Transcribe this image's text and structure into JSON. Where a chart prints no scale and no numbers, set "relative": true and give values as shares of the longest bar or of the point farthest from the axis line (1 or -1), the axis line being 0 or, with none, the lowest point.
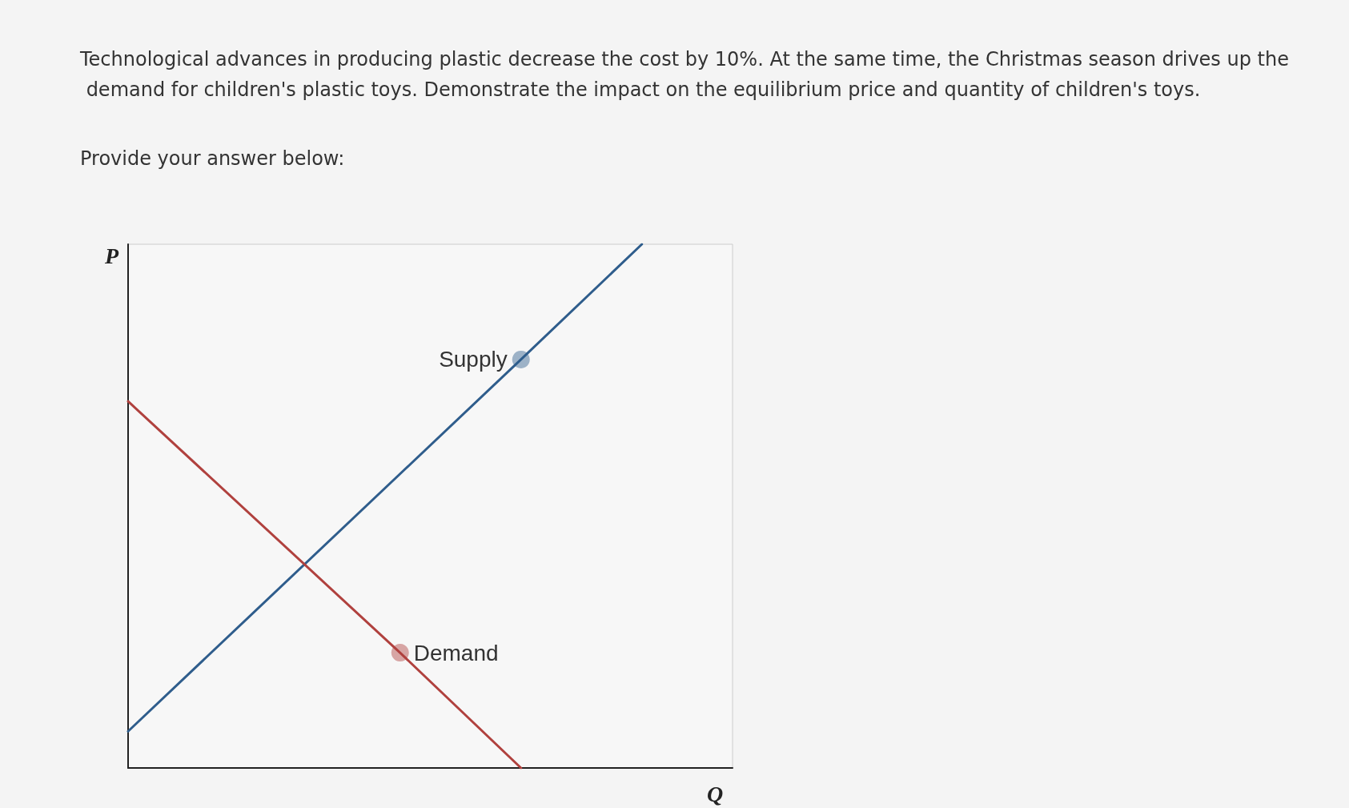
{
  "chart_data": {
    "type": "line",
    "title": "Technological advances in producing plastic decrease the cost by 10%. At the same time, the Christmas season drives up the demand for children's plastic toys. Demonstrate the impact on the equilibrium price and quantity of children's toys.",
    "subtitle": "Provide your answer below:",
    "xlabel": "Q",
    "ylabel": "P",
    "relative": true,
    "grid": false,
    "categories": [
      null,
      null,
      null,
      null,
      null,
      null,
      null,
      null,
      null,
      null,
      null,
      null,
      null,
      null,
      null,
      null,
      null,
      null,
      null,
      null,
      null
    ],
    "series": [
      {
        "name": "Supply",
        "color": "#2f5d8c",
        "values": [
          0.07,
          null,
          null,
          null,
          null,
          null,
          null,
          null,
          null,
          null,
          null,
          null,
          null,
          0.78,
          null,
          null,
          null,
          1,
          null,
          null,
          null
        ]
      },
      {
        "name": "Demand",
        "color": "#b0413e",
        "values": [
          0.7,
          null,
          null,
          null,
          null,
          null,
          null,
          null,
          null,
          0.22,
          null,
          null,
          null,
          0,
          null,
          null,
          null,
          null,
          null,
          null,
          null
        ]
      }
    ]
  }
}
